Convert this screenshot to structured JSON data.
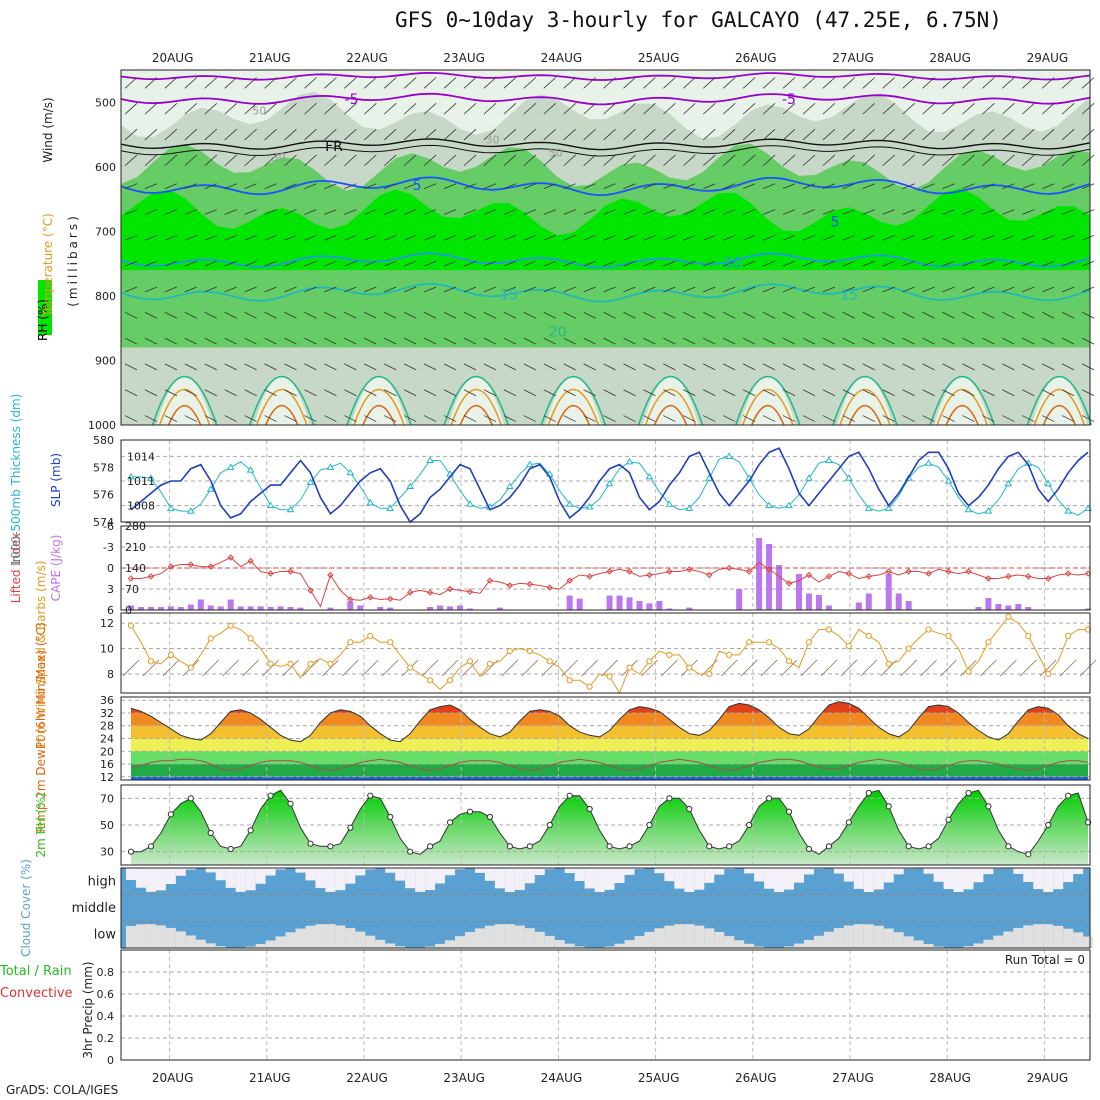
{
  "title": "GFS 0~10day 3-hourly for GALCAYO (47.25E, 6.75N)",
  "footer": "GrADS: COLA/IGES",
  "run_total_label": "Run Total = 0",
  "colors": {
    "rh_dark": "#00e600",
    "rh_mid": "#66cc66",
    "rh_light": "#c8d8c8",
    "rh_pale": "#e8f2e8",
    "temp_neg": "#9900cc",
    "temp_fr": "#111111",
    "temp_5": "#1a53ff",
    "temp_10": "#1e9be6",
    "temp_15": "#22b8b8",
    "temp_20": "#22bb88",
    "temp_25": "#e69a1e",
    "temp_30": "#dd6611",
    "slp": "#1f3fbf",
    "thick": "#22b8c8",
    "li": "#dd4444",
    "cape": "#bb77ee",
    "wind10m": "#e69a1e",
    "barb": "#8a6a4a",
    "rh2m": "#33cc33",
    "cloud": "#5aa0d0",
    "cloud_low": "#e0e0e0",
    "cloud_high": "#f4f0f8"
  },
  "chart_data": [
    {
      "type": "heatmap",
      "name": "upper_air",
      "x_dates": [
        "20AUG",
        "21AUG",
        "22AUG",
        "23AUG",
        "24AUG",
        "25AUG",
        "26AUG",
        "27AUG",
        "28AUG",
        "29AUG"
      ],
      "ylabel": "(millibars)",
      "y_ticks": [
        500,
        600,
        700,
        800,
        900,
        1000
      ],
      "ylim": [
        450,
        1000
      ],
      "legend": [
        "RH (%)",
        "Temperature (°C)",
        "Wind (m/s)"
      ],
      "isotherm_labels": [
        {
          "text": "-5",
          "day": 1.8,
          "p": 495,
          "c": "temp_neg"
        },
        {
          "text": "-5",
          "day": 6.3,
          "p": 495,
          "c": "temp_neg"
        },
        {
          "text": "FR",
          "day": 1.6,
          "p": 568,
          "c": "temp_fr"
        },
        {
          "text": "5",
          "day": 2.5,
          "p": 628,
          "c": "temp_5"
        },
        {
          "text": "5",
          "day": 6.8,
          "p": 685,
          "c": "temp_5"
        },
        {
          "text": "10",
          "day": 5.7,
          "p": 748,
          "c": "temp_10"
        },
        {
          "text": "15",
          "day": 3.4,
          "p": 798,
          "c": "temp_15"
        },
        {
          "text": "15",
          "day": 6.9,
          "p": 798,
          "c": "temp_15"
        },
        {
          "text": "20",
          "day": 3.9,
          "p": 855,
          "c": "temp_20"
        }
      ],
      "rh_contour_labels": [
        {
          "text": "50",
          "day": 0.85,
          "p": 513
        },
        {
          "text": "30",
          "day": 3.25,
          "p": 558
        },
        {
          "text": "50",
          "day": 3.9,
          "p": 578
        },
        {
          "text": "30",
          "day": 1.05,
          "p": 585
        }
      ]
    },
    {
      "type": "line",
      "name": "slp_thickness",
      "series": [
        {
          "name": "SLP (mb)",
          "axis": "right",
          "values": [
            1007.5,
            1008.5,
            1009.5,
            1010.5,
            1011,
            1011,
            1012.5,
            1013,
            1011,
            1008,
            1006.5,
            1007,
            1008.5,
            1009.5,
            1010.5,
            1010.5,
            1012,
            1013.5,
            1012,
            1009,
            1007,
            1008,
            1009.5,
            1011,
            1012,
            1012.5,
            1011,
            1008,
            1006,
            1007,
            1009,
            1010,
            1011.5,
            1013,
            1012.5,
            1010,
            1007.5,
            1008,
            1009,
            1010.5,
            1012.5,
            1013,
            1011.5,
            1008.5,
            1006.5,
            1007.5,
            1009,
            1011,
            1012.5,
            1013,
            1012,
            1009,
            1007.5,
            1008.5,
            1010.5,
            1012,
            1014,
            1014.5,
            1012,
            1009.5,
            1008,
            1009.5,
            1011,
            1013,
            1014.5,
            1015,
            1012.5,
            1009.5,
            1008,
            1009.5,
            1011,
            1012.5,
            1014,
            1014.5,
            1012.5,
            1010,
            1008,
            1009.5,
            1011.5,
            1013.5,
            1014.5,
            1014.5,
            1012.5,
            1009.5,
            1008,
            1009,
            1010.5,
            1012.5,
            1014,
            1014.5,
            1013,
            1010,
            1008.5,
            1010,
            1012,
            1013.5,
            1014.5
          ]
        },
        {
          "name": "1000-500mb Thickness (dm)",
          "axis": "left",
          "values": [
            577.3,
            577.3,
            577.2,
            576.2,
            575.0,
            574.8,
            574.8,
            575.3,
            576.4,
            577.6,
            578.0,
            578.4,
            577.8,
            576.5,
            575.2,
            574.9,
            574.9,
            575.6,
            576.9,
            577.8,
            578.0,
            578.3,
            577.6,
            576.6,
            575.4,
            575.0,
            575.0,
            575.8,
            576.6,
            577.5,
            578.5,
            578.5,
            577.5,
            576.3,
            575.3,
            575.0,
            575.1,
            575.6,
            576.6,
            577.5,
            578.2,
            578.3,
            577.5,
            576.3,
            575.3,
            575.0,
            575.1,
            575.7,
            576.8,
            577.9,
            578.4,
            578.3,
            577.3,
            576.2,
            575.3,
            574.9,
            575.0,
            575.8,
            577.2,
            578.6,
            578.8,
            578.4,
            577.2,
            576.0,
            575.2,
            575.0,
            575.2,
            576.0,
            577.2,
            578.3,
            578.5,
            578.2,
            577.2,
            576.0,
            575.0,
            574.8,
            575.0,
            575.9,
            577.2,
            578.0,
            578.3,
            578.0,
            577.0,
            575.8,
            574.9,
            574.6,
            574.8,
            575.6,
            576.8,
            577.9,
            578.3,
            578.0,
            576.8,
            575.6,
            574.8,
            574.5,
            575.0
          ]
        }
      ],
      "left_ticks": [
        574,
        576,
        578,
        580
      ],
      "left_lim": [
        574,
        580
      ],
      "right_ticks": [
        1008,
        1011,
        1014
      ],
      "right_lim": [
        1006,
        1016
      ],
      "ylabel_left": "1000-500mb Thickness (dm)",
      "ylabel_right": "SLP (mb)"
    },
    {
      "type": "bar",
      "name": "cape_li",
      "series": [
        {
          "name": "CAPE (J/kg)",
          "axis": "right",
          "values": [
            15,
            10,
            10,
            10,
            12,
            10,
            18,
            35,
            15,
            12,
            35,
            12,
            12,
            12,
            10,
            12,
            10,
            8,
            0,
            0,
            8,
            2,
            28,
            15,
            0,
            10,
            8,
            0,
            0,
            0,
            10,
            15,
            12,
            15,
            5,
            0,
            0,
            8,
            0,
            0,
            0,
            0,
            0,
            0,
            48,
            38,
            0,
            0,
            48,
            48,
            42,
            30,
            22,
            30,
            5,
            0,
            8,
            0,
            0,
            0,
            0,
            70,
            0,
            240,
            220,
            150,
            0,
            120,
            55,
            50,
            15,
            0,
            0,
            25,
            55,
            0,
            120,
            55,
            30,
            0,
            0,
            0,
            0,
            0,
            0,
            10,
            40,
            20,
            15,
            20,
            10,
            0,
            0,
            0,
            0,
            0,
            5
          ]
        },
        {
          "name": "Lifted Index",
          "axis": "left",
          "values": [
            1.5,
            1.5,
            1.2,
            0.8,
            -0.2,
            -0.5,
            -0.5,
            -0.2,
            -0.2,
            -0.8,
            -1.5,
            -0.2,
            -1,
            0.5,
            0.8,
            0.5,
            0.5,
            0.8,
            3.2,
            5.5,
            1,
            3.2,
            4.5,
            4.6,
            4.2,
            4.5,
            4.4,
            4.6,
            3.5,
            3.2,
            3.5,
            3.8,
            3.0,
            3.2,
            3.4,
            3.6,
            1.8,
            2.0,
            2.5,
            2.2,
            2.3,
            2.5,
            2.8,
            3.0,
            1.8,
            1.0,
            1.2,
            0.8,
            0.5,
            0.2,
            0.5,
            1.2,
            1.0,
            0.8,
            0.5,
            0.5,
            0.2,
            0.5,
            1.0,
            0.2,
            0,
            0.2,
            0.5,
            -0.8,
            0.2,
            1.2,
            2.2,
            1.8,
            1.0,
            2.0,
            1.2,
            0.5,
            0.8,
            1.5,
            1.2,
            1.0,
            0.5,
            1.0,
            0.5,
            0.5,
            0.8,
            0.2,
            0.5,
            0.8,
            0.5,
            1.0,
            1.5,
            1.5,
            1.2,
            1.0,
            1.2,
            1.5,
            1.5,
            1.0,
            0.8,
            1.0,
            0.8
          ]
        }
      ],
      "left_ticks": [
        6,
        3,
        0,
        -3,
        -6
      ],
      "left_lim": [
        6,
        -6
      ],
      "right_ticks": [
        0,
        70,
        140,
        210,
        280
      ],
      "right_lim": [
        0,
        280
      ],
      "ylabel_left": "Lifted Index",
      "ylabel_right": "CAPE (J/kg)"
    },
    {
      "type": "line",
      "name": "wind10m",
      "series": [
        {
          "name": "10m Wind Speed & Barbs (m/s)",
          "values": [
            11.8,
            10.5,
            9,
            8.8,
            9.5,
            9,
            8.5,
            9.5,
            10.8,
            11.2,
            11.8,
            11.5,
            10.8,
            10,
            8.8,
            8.6,
            8.8,
            7.7,
            8.8,
            9.2,
            8.8,
            9.5,
            10.5,
            10.5,
            11,
            10.5,
            10.5,
            9.5,
            8.5,
            8,
            7.5,
            6.8,
            7.5,
            8.5,
            9,
            7.8,
            8.8,
            9,
            9.8,
            10,
            9.8,
            9.5,
            9,
            8.5,
            7.5,
            7.5,
            7,
            8,
            7.8,
            6.5,
            8.5,
            8,
            9,
            9.8,
            9.5,
            9.5,
            8.5,
            8,
            8,
            9.8,
            9.5,
            9.5,
            10.5,
            10.5,
            10.5,
            10,
            9,
            8.5,
            10.5,
            11.5,
            11.5,
            11,
            10.2,
            11.5,
            11,
            10.5,
            8.8,
            9,
            10,
            10.8,
            11.5,
            11.2,
            11,
            10,
            8.2,
            9,
            10.5,
            11.5,
            12.5,
            12,
            11,
            9.5,
            8,
            9,
            11,
            11.5,
            11.5
          ]
        }
      ],
      "y_ticks": [
        8,
        10,
        12
      ],
      "ylim": [
        6.5,
        12.8
      ],
      "ylabel": "10m Wind Speed & Barbs (m/s)"
    },
    {
      "type": "area",
      "name": "temp2m",
      "series": [
        {
          "name": "2m Temp",
          "values": [
            33.5,
            32.5,
            31,
            29,
            27,
            25,
            24,
            23.5,
            25.5,
            29,
            32.5,
            33,
            32,
            30,
            27.5,
            25,
            23.5,
            23,
            25,
            29,
            32,
            33,
            32.5,
            31,
            28,
            25.5,
            23.5,
            23,
            25.5,
            29.5,
            33,
            34,
            34.5,
            33,
            30,
            27.5,
            25.5,
            24.5,
            26,
            29.5,
            32.5,
            33,
            32.5,
            31,
            28,
            26,
            25,
            24.5,
            26.5,
            30,
            33,
            34,
            33.5,
            32.5,
            30,
            27.5,
            25.5,
            25,
            26.5,
            30,
            34,
            35,
            34.5,
            33,
            30.5,
            27.5,
            25.5,
            25,
            27,
            31,
            34.5,
            35.5,
            35,
            33.5,
            30.5,
            27.5,
            25.5,
            24.5,
            26.5,
            30.5,
            34,
            34.5,
            34,
            32,
            29,
            26.5,
            24.5,
            23.5,
            25.5,
            29.5,
            33,
            34,
            33.5,
            31.5,
            28,
            25.5,
            24
          ]
        },
        {
          "name": "2m DewPt",
          "values": [
            15,
            15.5,
            16.5,
            17,
            17,
            17.5,
            17.5,
            17,
            16,
            14.5,
            14,
            14.5,
            15.5,
            16.5,
            17,
            17,
            17,
            16.5,
            15.5,
            14.5,
            14,
            14.5,
            15.5,
            16.5,
            17,
            17.5,
            17,
            16.5,
            15.5,
            14.5,
            14,
            14.5,
            15.5,
            16.5,
            17,
            17,
            17,
            16.5,
            15.5,
            14.5,
            14,
            14.5,
            15.5,
            16.5,
            17,
            17.5,
            17,
            16.5,
            15.5,
            14.5,
            14,
            14.5,
            15.5,
            16.5,
            17,
            17.5,
            17,
            16.5,
            15.5,
            14.5,
            14,
            14.5,
            15.5,
            16.5,
            17,
            17.5,
            17.5,
            17,
            16,
            15,
            14.5,
            14.5,
            15.5,
            16.5,
            17,
            17.5,
            17,
            16.5,
            15.5,
            14.5,
            14,
            14.5,
            15.5,
            16.5,
            17,
            17,
            16.5,
            16,
            15,
            14.5,
            14,
            14.5,
            15.5,
            16.5,
            17,
            17,
            16.5
          ]
        }
      ],
      "y_ticks": [
        12,
        16,
        20,
        24,
        28,
        32,
        36
      ],
      "ylim": [
        11,
        37
      ],
      "ylabel": "2m Temp 2m DewPt (6hr Min/Max) (°C)"
    },
    {
      "type": "area",
      "name": "rh2m",
      "series": [
        {
          "name": "2m RH",
          "values": [
            30,
            30,
            34,
            44,
            58,
            66,
            70,
            60,
            44,
            34,
            32,
            34,
            46,
            62,
            72,
            76,
            66,
            48,
            36,
            34,
            34,
            36,
            48,
            62,
            72,
            70,
            56,
            40,
            30,
            28,
            34,
            38,
            52,
            58,
            60,
            60,
            56,
            44,
            34,
            32,
            34,
            38,
            50,
            64,
            72,
            72,
            62,
            46,
            34,
            32,
            34,
            38,
            50,
            64,
            70,
            70,
            62,
            46,
            34,
            32,
            34,
            38,
            50,
            64,
            70,
            70,
            60,
            44,
            32,
            28,
            34,
            40,
            52,
            64,
            74,
            76,
            64,
            46,
            34,
            32,
            34,
            40,
            54,
            66,
            74,
            76,
            64,
            46,
            34,
            30,
            28,
            38,
            50,
            64,
            72,
            74,
            52
          ]
        }
      ],
      "y_ticks": [
        30,
        50,
        70
      ],
      "ylim": [
        20,
        80
      ],
      "ylabel": "2m RH (%)"
    },
    {
      "type": "bar",
      "name": "cloud_cover",
      "rows": [
        "high",
        "middle",
        "low"
      ],
      "ylabel": "Cloud Cover (%)"
    },
    {
      "type": "bar",
      "name": "precip",
      "series": [
        {
          "name": "Total / Rain",
          "values": []
        },
        {
          "name": "Convective",
          "values": []
        }
      ],
      "y_ticks": [
        0,
        0.2,
        0.4,
        0.6,
        0.8
      ],
      "ylim": [
        0,
        1
      ],
      "ylabel": "3hr Precip (mm)"
    }
  ]
}
